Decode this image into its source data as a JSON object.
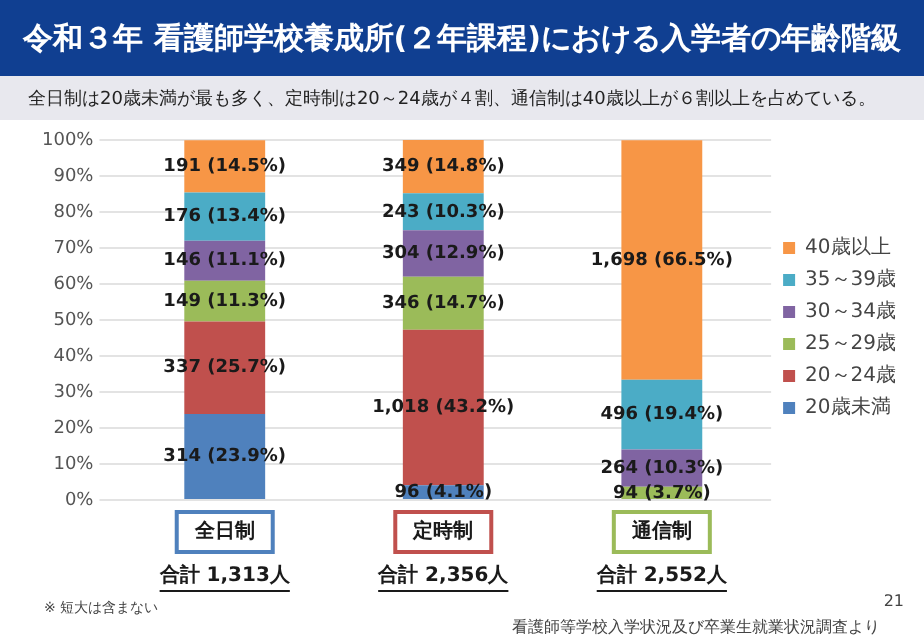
{
  "chart_data": {
    "type": "bar",
    "title": "令和３年 看護師学校養成所(２年課程)における入学者の年齢階級",
    "subtitle": "全日制は20歳未満が最も多く、定時制は20～24歳が４割、通信制は40歳以上が６割以上を占めている。",
    "categories": [
      "全日制",
      "定時制",
      "通信制"
    ],
    "series": [
      {
        "name": "20歳未満",
        "color": "#4f81bd",
        "values": [
          23.9,
          4.1,
          0
        ],
        "value_labels": [
          "314 (23.9%)",
          "96 (4.1%)",
          null
        ]
      },
      {
        "name": "20～24歳",
        "color": "#c0504d",
        "values": [
          25.7,
          43.2,
          0
        ],
        "value_labels": [
          "337 (25.7%)",
          "1,018 (43.2%)",
          null
        ]
      },
      {
        "name": "25～29歳",
        "color": "#9bbb59",
        "values": [
          11.3,
          14.7,
          3.7
        ],
        "value_labels": [
          "149 (11.3%)",
          "346 (14.7%)",
          "94 (3.7%)"
        ]
      },
      {
        "name": "30～34歳",
        "color": "#8064a2",
        "values": [
          11.1,
          12.9,
          10.3
        ],
        "value_labels": [
          "146 (11.1%)",
          "304 (12.9%)",
          "264 (10.3%)"
        ]
      },
      {
        "name": "35～39歳",
        "color": "#4bacc6",
        "values": [
          13.4,
          10.3,
          19.4
        ],
        "value_labels": [
          "176 (13.4%)",
          "243 (10.3%)",
          "496 (19.4%)"
        ]
      },
      {
        "name": "40歳以上",
        "color": "#f79646",
        "values": [
          14.5,
          14.8,
          66.5
        ],
        "value_labels": [
          "191 (14.5%)",
          "349 (14.8%)",
          "1,698 (66.5%)"
        ]
      }
    ],
    "stacked": true,
    "ylim": [
      0,
      100
    ],
    "yticks": [
      {
        "value": 0,
        "label": "0%"
      },
      {
        "value": 10,
        "label": "10%"
      },
      {
        "value": 20,
        "label": "20%"
      },
      {
        "value": 30,
        "label": "30%"
      },
      {
        "value": 40,
        "label": "40%"
      },
      {
        "value": 50,
        "label": "50%"
      },
      {
        "value": 60,
        "label": "60%"
      },
      {
        "value": 70,
        "label": "70%"
      },
      {
        "value": 80,
        "label": "80%"
      },
      {
        "value": 90,
        "label": "90%"
      },
      {
        "value": 100,
        "label": "100%"
      }
    ],
    "grid": "y",
    "legend": "right",
    "annotations": [
      "※ 短大は含まない",
      "21",
      "看護師等学校入学状況及び卒業生就業状況調査より",
      "合計 1,313人",
      "合計 2,356人",
      "合計 2,552人"
    ]
  }
}
